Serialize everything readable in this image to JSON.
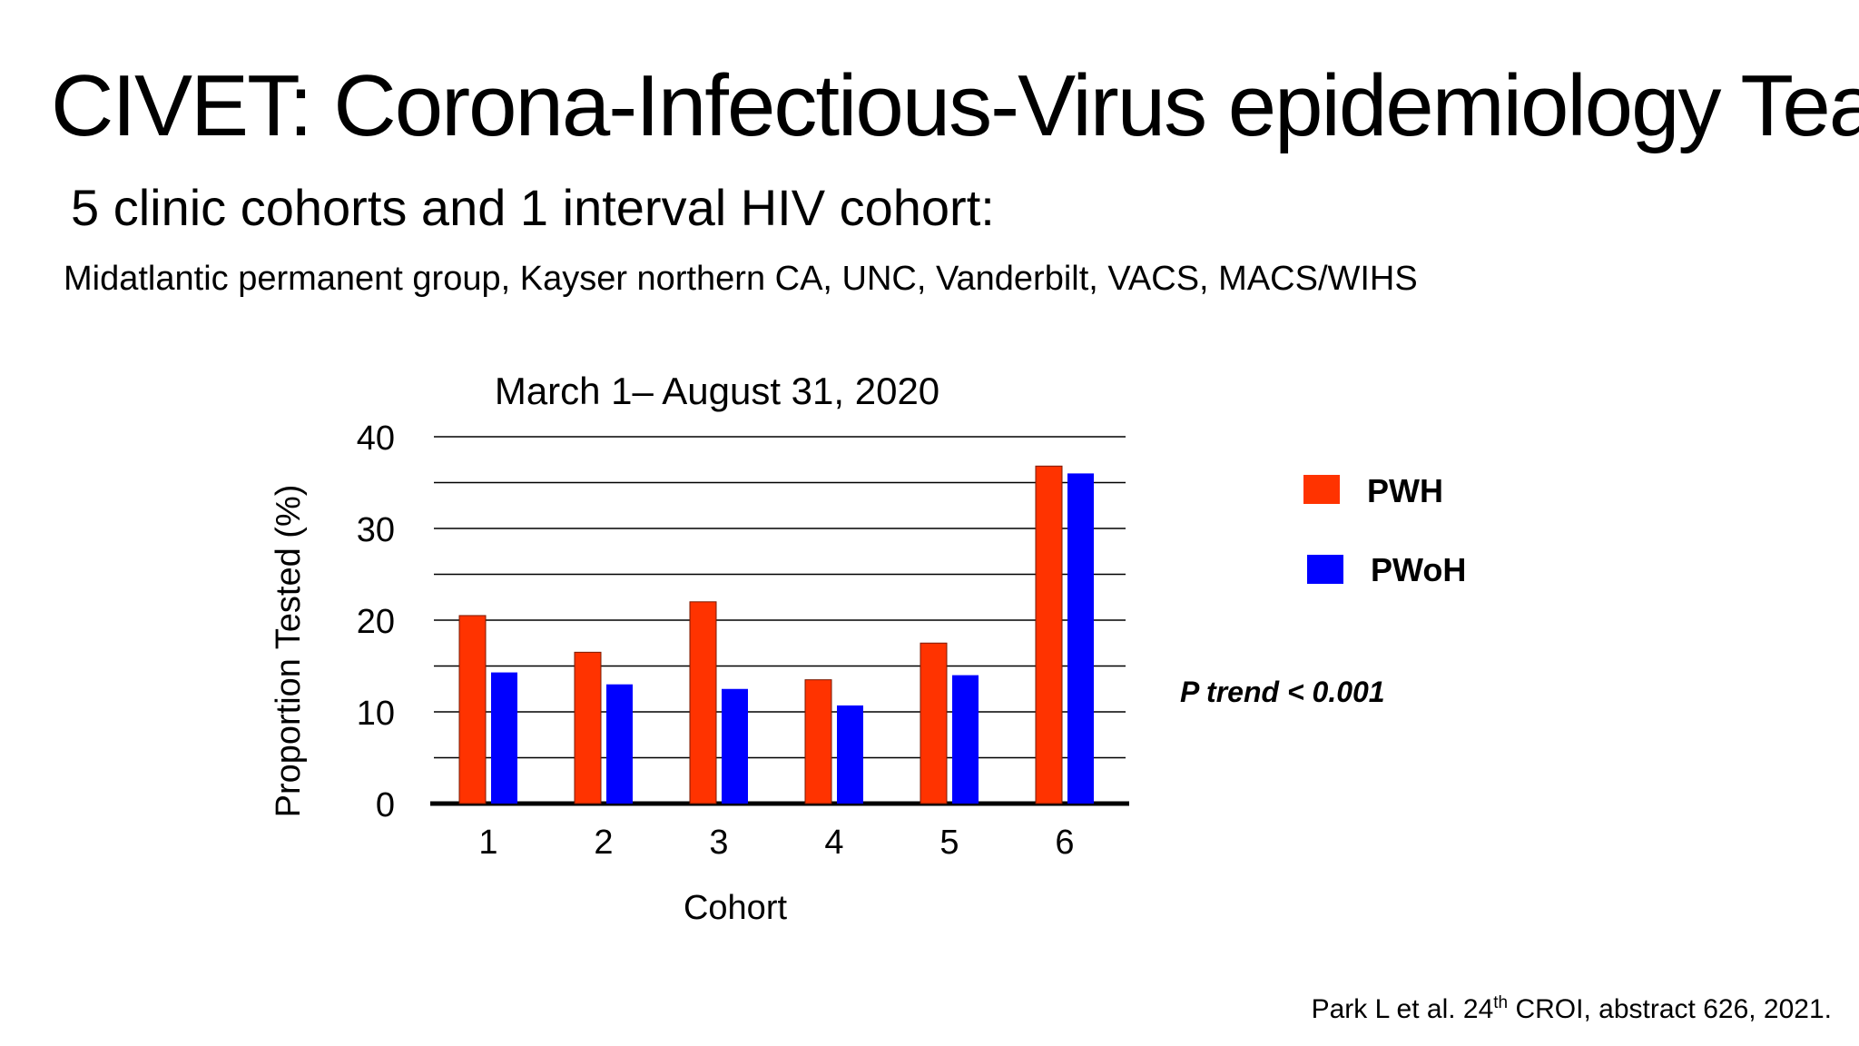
{
  "slide": {
    "title": "CIVET: Corona-Infectious-Virus epidemiology Team",
    "subtitle": "5 clinic cohorts and 1 interval HIV cohort:",
    "sites": "Midatlantic permanent group, Kayser northern CA, UNC, Vanderbilt, VACS,  MACS/WIHS",
    "citation_pre": "Park L et al. 24",
    "citation_sup": "th",
    "citation_post": " CROI, abstract 626, 2021."
  },
  "chart_data": {
    "type": "bar",
    "title": "March 1– August 31, 2020",
    "xlabel": "Cohort",
    "ylabel": "Proportion Tested (%)",
    "ylim": [
      0,
      40
    ],
    "yticks": [
      0,
      10,
      20,
      30,
      40
    ],
    "grid": true,
    "legend_position": "right",
    "categories": [
      "1",
      "2",
      "3",
      "4",
      "5",
      "6"
    ],
    "series": [
      {
        "name": "PWH",
        "color": "#ff3300",
        "values": [
          20.5,
          16.5,
          22,
          13.5,
          17.5,
          36.8
        ]
      },
      {
        "name": "PWoH",
        "color": "#0000ff",
        "values": [
          14.3,
          13,
          12.5,
          10.7,
          14,
          36
        ]
      }
    ],
    "annotation": "P trend < 0.001"
  }
}
